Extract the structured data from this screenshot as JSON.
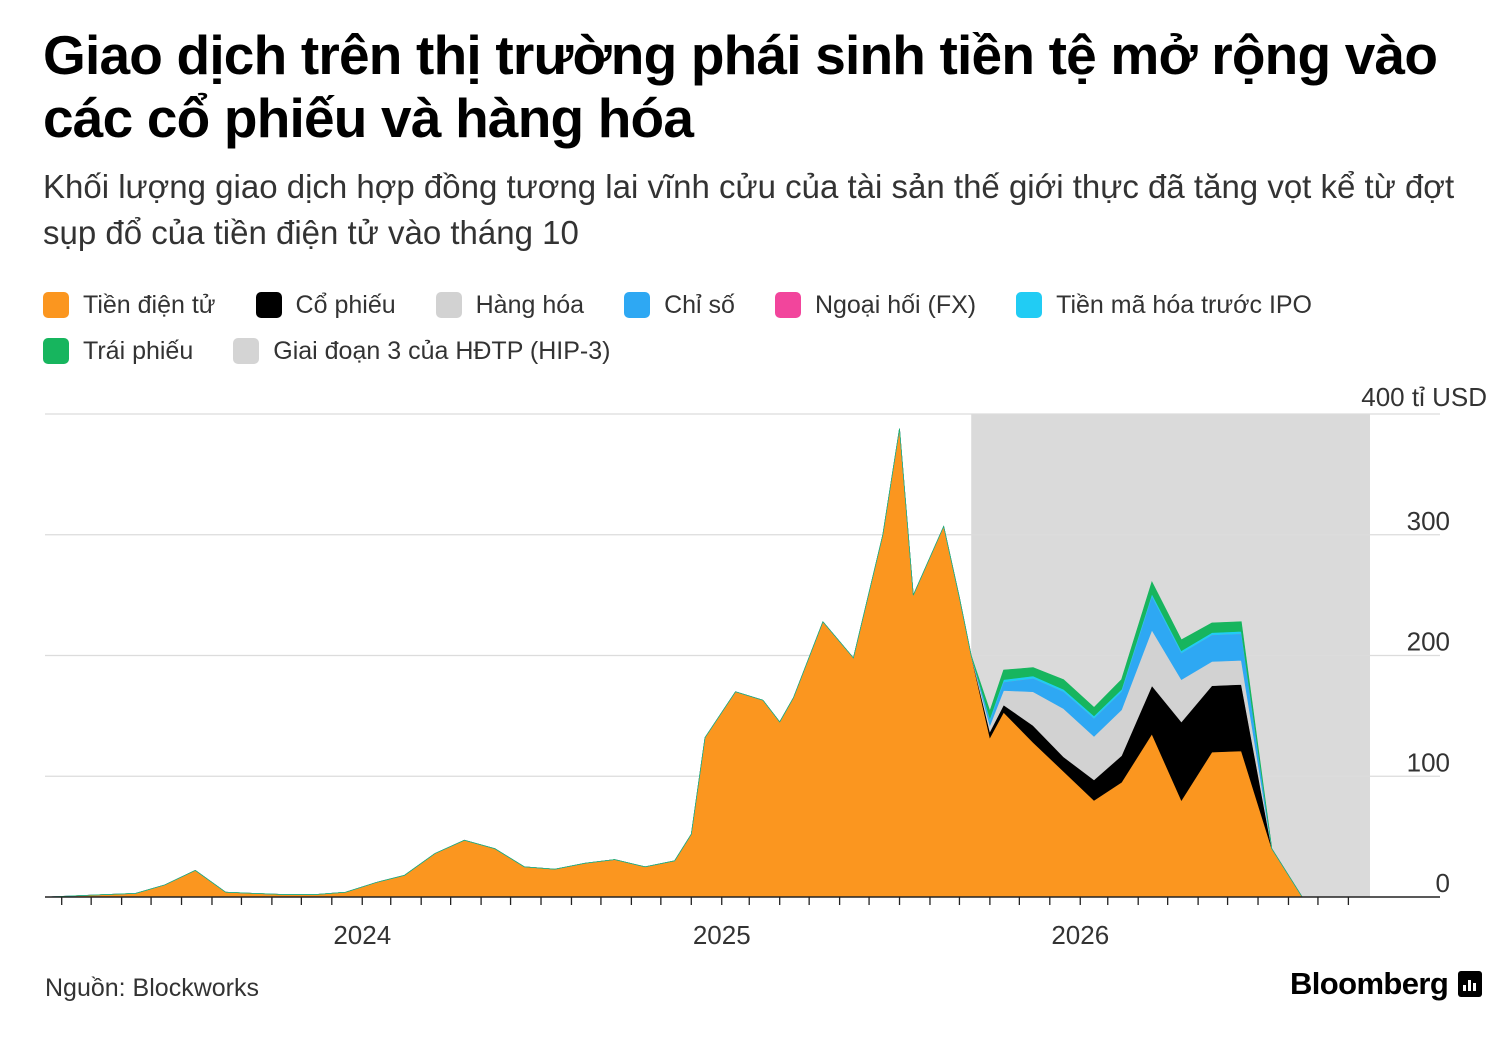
{
  "header": {
    "title": "Giao dịch trên thị trường phái sinh tiền tệ mở rộng vào các cổ phiếu và hàng hóa",
    "subtitle": "Khối lượng giao dịch hợp đồng tương lai vĩnh cửu của tài sản thế giới thực đã tăng vọt kể từ đợt sụp đổ của tiền điện tử vào tháng 10"
  },
  "legend": [
    {
      "label": "Tiền điện tử",
      "color": "#FB961F"
    },
    {
      "label": "Cổ phiếu",
      "color": "#000000"
    },
    {
      "label": "Hàng hóa",
      "color": "#D2D2D2"
    },
    {
      "label": "Chỉ số",
      "color": "#2EA8F3"
    },
    {
      "label": "Ngoại hối (FX)",
      "color": "#F2459C"
    },
    {
      "label": "Tiền mã hóa trước IPO",
      "color": "#21CCF4"
    },
    {
      "label": "Trái phiếu",
      "color": "#17B55E"
    },
    {
      "label": "Giai đoạn 3 của HĐTP (HIP-3)",
      "color": "#D4D4D4"
    }
  ],
  "footer": {
    "source": "Nguồn: Blockworks",
    "brand": "Bloomberg",
    "brand_icon": "bloomberg-terminal-icon"
  },
  "chart_data": {
    "type": "area",
    "stacked": true,
    "y_unit_label": "400 tỉ USD",
    "ylim": [
      0,
      400
    ],
    "yticks": [
      {
        "value": 0,
        "label": "0"
      },
      {
        "value": 100,
        "label": "100"
      },
      {
        "value": 200,
        "label": "200"
      },
      {
        "value": 300,
        "label": "300"
      },
      {
        "value": 400,
        "label": "400 tỉ USD"
      }
    ],
    "xlim": [
      "2023-03-15",
      "2026-11-23"
    ],
    "xticks": [
      {
        "date": "2024-01-01",
        "label": "2024"
      },
      {
        "date": "2025-01-01",
        "label": "2025"
      },
      {
        "date": "2026-01-01",
        "label": "2026"
      }
    ],
    "minor_tick_interval": "monthly",
    "grid": "horizontal",
    "shaded_region": {
      "label": "Giai đoạn 3 của HĐTP (HIP-3)",
      "x_start": "2025-10-13",
      "x_end": "2026-11-23",
      "color": "#D4D4D4"
    },
    "x": [
      "2023-03-15",
      "2023-04-15",
      "2023-05-15",
      "2023-06-15",
      "2023-07-15",
      "2023-08-15",
      "2023-09-15",
      "2023-10-15",
      "2023-11-15",
      "2023-12-15",
      "2024-01-15",
      "2024-02-15",
      "2024-03-15",
      "2024-04-15",
      "2024-05-15",
      "2024-06-15",
      "2024-07-15",
      "2024-08-15",
      "2024-09-15",
      "2024-10-15",
      "2024-11-15",
      "2024-12-15",
      "2025-01-01",
      "2025-01-15",
      "2025-02-15",
      "2025-03-15",
      "2025-04-01",
      "2025-04-15",
      "2025-05-15",
      "2025-06-15",
      "2025-07-15",
      "2025-08-01",
      "2025-08-15",
      "2025-09-15",
      "2025-10-01",
      "2025-10-13",
      "2025-11-01",
      "2025-11-15",
      "2025-12-15",
      "2026-01-15",
      "2026-02-15",
      "2026-03-15",
      "2026-04-15",
      "2026-05-15",
      "2026-06-15",
      "2026-07-15",
      "2026-08-15",
      "2026-09-15",
      "2026-10-15",
      "2026-11-15",
      "2026-11-23"
    ],
    "series": [
      {
        "name": "Tiền điện tử",
        "color": "#FB961F",
        "values": [
          0,
          1,
          2,
          3,
          10,
          22,
          4,
          3,
          2,
          2,
          4,
          12,
          18,
          36,
          47,
          40,
          25,
          23,
          28,
          31,
          25,
          30,
          52,
          132,
          170,
          163,
          145,
          165,
          228,
          198,
          300,
          388,
          250,
          307,
          248,
          200,
          132,
          153,
          128,
          104,
          80,
          95,
          135,
          80,
          120,
          121,
          40,
          0,
          0,
          0,
          0
        ]
      },
      {
        "name": "Cổ phiếu",
        "color": "#000000",
        "values": [
          0,
          0,
          0,
          0,
          0,
          0,
          0,
          0,
          0,
          0,
          0,
          0,
          0,
          0,
          0,
          0,
          0,
          0,
          0,
          0,
          0,
          0,
          0,
          0,
          0,
          0,
          0,
          0,
          0,
          0,
          0,
          0,
          0,
          0,
          0,
          0,
          5,
          6,
          14,
          12,
          17,
          22,
          40,
          65,
          55,
          55,
          0,
          0,
          0,
          0,
          0
        ]
      },
      {
        "name": "Hàng hóa",
        "color": "#D2D2D2",
        "values": [
          0,
          0,
          0,
          0,
          0,
          0,
          0,
          0,
          0,
          0,
          0,
          0,
          0,
          0,
          0,
          0,
          0,
          0,
          0,
          0,
          0,
          0,
          0,
          0,
          0,
          0,
          0,
          0,
          0,
          0,
          0,
          0,
          0,
          0,
          0,
          0,
          5,
          12,
          28,
          40,
          36,
          38,
          46,
          35,
          20,
          20,
          0,
          0,
          0,
          0,
          0
        ]
      },
      {
        "name": "Chỉ số",
        "color": "#2EA8F3",
        "values": [
          0,
          0,
          0,
          0,
          0,
          0,
          0,
          0,
          0,
          0,
          0,
          0,
          0,
          0,
          0,
          0,
          0,
          0,
          0,
          0,
          0,
          0,
          0,
          0,
          0,
          0,
          0,
          0,
          0,
          0,
          0,
          0,
          0,
          0,
          0,
          0,
          4,
          7,
          11,
          14,
          15,
          15,
          28,
          22,
          22,
          22,
          0,
          0,
          0,
          0,
          0
        ]
      },
      {
        "name": "Ngoại hối (FX)",
        "color": "#F2459C",
        "values": [
          0,
          0,
          0,
          0,
          0,
          0,
          0,
          0,
          0,
          0,
          0,
          0,
          0,
          0,
          0,
          0,
          0,
          0,
          0,
          0,
          0,
          0,
          0,
          0,
          0,
          0,
          0,
          0,
          0,
          0,
          0,
          0,
          0,
          0,
          0,
          0,
          0,
          0,
          0,
          0,
          0,
          0,
          0,
          0,
          0,
          0,
          0,
          0,
          0,
          0,
          0
        ]
      },
      {
        "name": "Tiền mã hóa trước IPO",
        "color": "#21CCF4",
        "values": [
          0,
          0,
          0,
          0,
          0,
          0,
          0,
          0,
          0,
          0,
          0,
          0,
          0,
          0,
          0,
          0,
          0,
          0,
          0,
          0,
          0,
          0,
          0,
          0,
          0,
          0,
          0,
          0,
          0,
          0,
          0,
          0,
          0,
          0,
          0,
          0,
          2,
          2,
          2,
          2,
          2,
          2,
          2,
          2,
          2,
          2,
          0,
          0,
          0,
          0,
          0
        ]
      },
      {
        "name": "Trái phiếu",
        "color": "#17B55E",
        "values": [
          0,
          0,
          0,
          0,
          0,
          0,
          0,
          0,
          0,
          0,
          0,
          0,
          0,
          0,
          0,
          0,
          0,
          0,
          0,
          0,
          0,
          0,
          0,
          0,
          0,
          0,
          0,
          0,
          0,
          0,
          0,
          0,
          0,
          0,
          0,
          0,
          6,
          8,
          7,
          8,
          7,
          8,
          10,
          9,
          8,
          8,
          0,
          0,
          0,
          0,
          0
        ]
      }
    ]
  }
}
